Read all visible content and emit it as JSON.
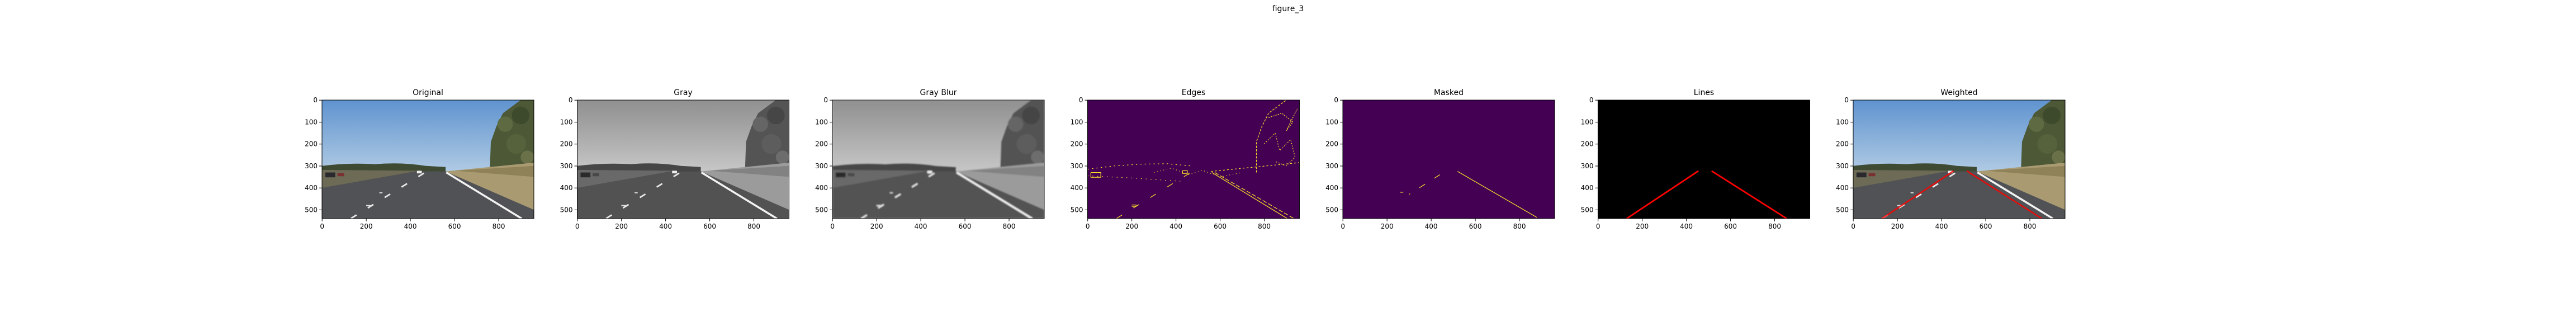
{
  "figure_title": "figure_3",
  "chart_data": [
    {
      "type": "image",
      "title": "Original",
      "xlim": [
        -0.5,
        959.5
      ],
      "ylim": [
        539.5,
        -0.5
      ],
      "xticks": [
        0,
        200,
        400,
        600,
        800
      ],
      "yticks": [
        0,
        100,
        200,
        300,
        400,
        500
      ]
    },
    {
      "type": "image",
      "title": "Gray",
      "xlim": [
        -0.5,
        959.5
      ],
      "ylim": [
        539.5,
        -0.5
      ],
      "xticks": [
        0,
        200,
        400,
        600,
        800
      ],
      "yticks": [
        0,
        100,
        200,
        300,
        400,
        500
      ]
    },
    {
      "type": "image",
      "title": "Gray Blur",
      "xlim": [
        -0.5,
        959.5
      ],
      "ylim": [
        539.5,
        -0.5
      ],
      "xticks": [
        0,
        200,
        400,
        600,
        800
      ],
      "yticks": [
        0,
        100,
        200,
        300,
        400,
        500
      ]
    },
    {
      "type": "image",
      "title": "Edges",
      "xlim": [
        -0.5,
        959.5
      ],
      "ylim": [
        539.5,
        -0.5
      ],
      "xticks": [
        0,
        200,
        400,
        600,
        800
      ],
      "yticks": [
        0,
        100,
        200,
        300,
        400,
        500
      ]
    },
    {
      "type": "image",
      "title": "Masked",
      "xlim": [
        -0.5,
        959.5
      ],
      "ylim": [
        539.5,
        -0.5
      ],
      "xticks": [
        0,
        200,
        400,
        600,
        800
      ],
      "yticks": [
        0,
        100,
        200,
        300,
        400,
        500
      ]
    },
    {
      "type": "image",
      "title": "Lines",
      "xlim": [
        -0.5,
        959.5
      ],
      "ylim": [
        539.5,
        -0.5
      ],
      "xticks": [
        0,
        200,
        400,
        600,
        800
      ],
      "yticks": [
        0,
        100,
        200,
        300,
        400,
        500
      ]
    },
    {
      "type": "image",
      "title": "Weighted",
      "xlim": [
        -0.5,
        959.5
      ],
      "ylim": [
        539.5,
        -0.5
      ],
      "xticks": [
        0,
        200,
        400,
        600,
        800
      ],
      "yticks": [
        0,
        100,
        200,
        300,
        400,
        500
      ]
    }
  ]
}
